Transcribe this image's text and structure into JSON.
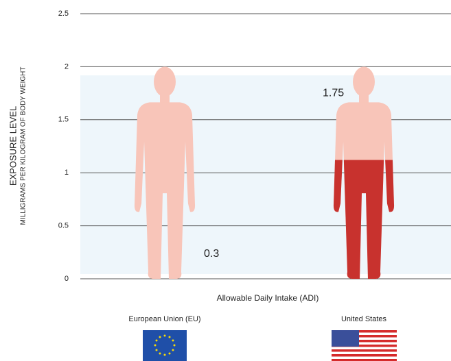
{
  "chart_data": {
    "type": "pictograph",
    "ylabel": "EXPOSURE LEVEL",
    "ylabel_sub": "MILLIGRAMS PER KILOGRAM OF BODY WEIGHT",
    "xlabel": "Allowable Daily Intake (ADI)",
    "categories": [
      "European Union (EU)",
      "United States"
    ],
    "series": [
      {
        "name": null,
        "colors": [
          "#2457c5",
          "#c8322e"
        ],
        "values": [
          0.3,
          1.75
        ]
      }
    ],
    "ylim": [
      0,
      2.5
    ],
    "yticks": [
      0,
      0.5,
      1,
      1.5,
      2,
      2.5
    ],
    "grid": true
  }
}
